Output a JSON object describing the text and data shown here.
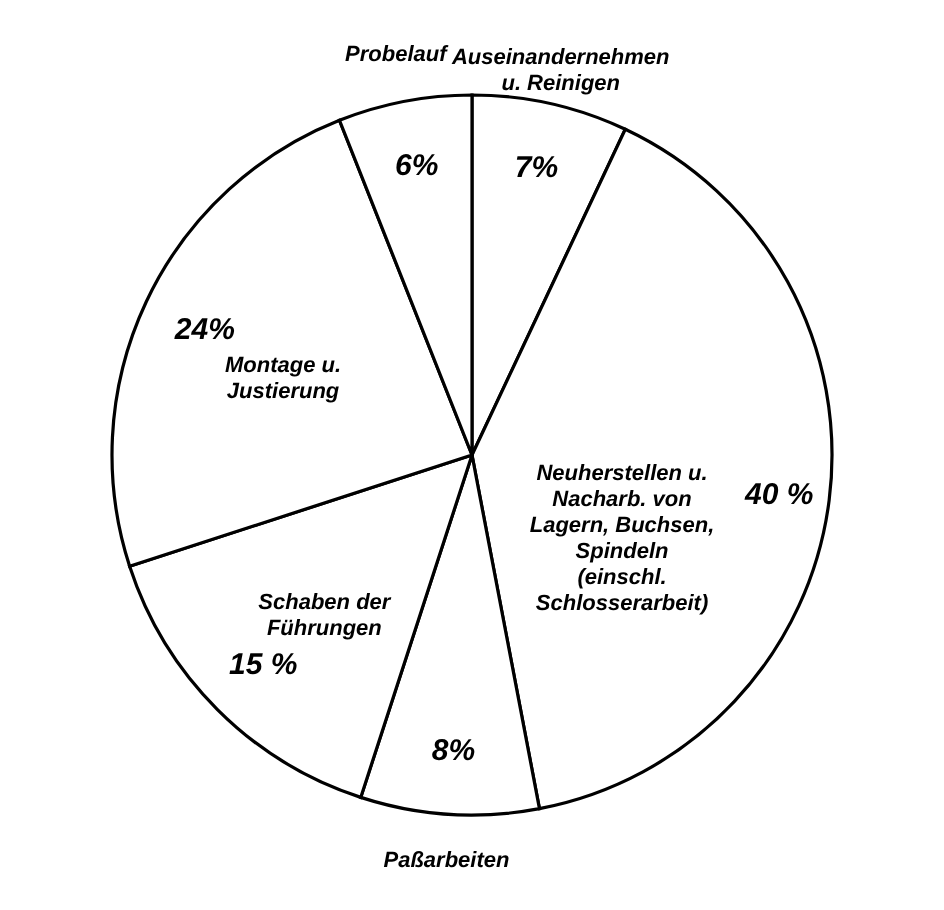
{
  "chart_data": {
    "type": "pie",
    "categories": [
      "Auseinandernehmen u. Reinigen",
      "Neuherstellen u. Nacharb. von Lagern, Buchsen, Spindeln (einschl. Schlosserarbeit)",
      "Paßarbeiten",
      "Schaben der Führungen",
      "Montage u. Justierung",
      "Probelauf"
    ],
    "values": [
      7,
      40,
      8,
      15,
      24,
      6
    ],
    "colors": [
      "#ffffff",
      "#ffffff",
      "#ffffff",
      "#ffffff",
      "#ffffff",
      "#ffffff"
    ],
    "value_labels": [
      "7%",
      "40 %",
      "8%",
      "15 %",
      "24%",
      "6%"
    ]
  }
}
